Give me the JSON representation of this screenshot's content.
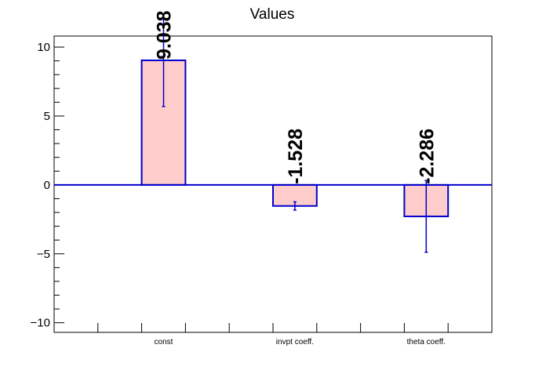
{
  "chart_data": {
    "type": "bar",
    "title": "Values",
    "xlabel": "",
    "ylabel": "",
    "categories": [
      "const",
      "invpt coeff.",
      "theta coeff."
    ],
    "values": [
      9.038,
      -1.528,
      -2.286
    ],
    "errors": [
      3.35,
      0.3,
      2.6
    ],
    "value_labels": [
      "9.038",
      "-1.528",
      "-2.286"
    ],
    "ylim": [
      -10.7,
      10.8
    ],
    "yticks": [
      10,
      5,
      0,
      -5,
      -10
    ],
    "ytick_labels": [
      "10",
      "5",
      "0",
      "−5",
      "−10"
    ],
    "xlim": [
      0,
      10
    ],
    "bar_positions": [
      2.5,
      5.5,
      8.5
    ],
    "bar_width": 1.0,
    "bar_fill": "#ffcccc",
    "bar_edge": "#0000cc",
    "zero_line_color": "#0000cc",
    "grid": false,
    "legend": "none"
  }
}
